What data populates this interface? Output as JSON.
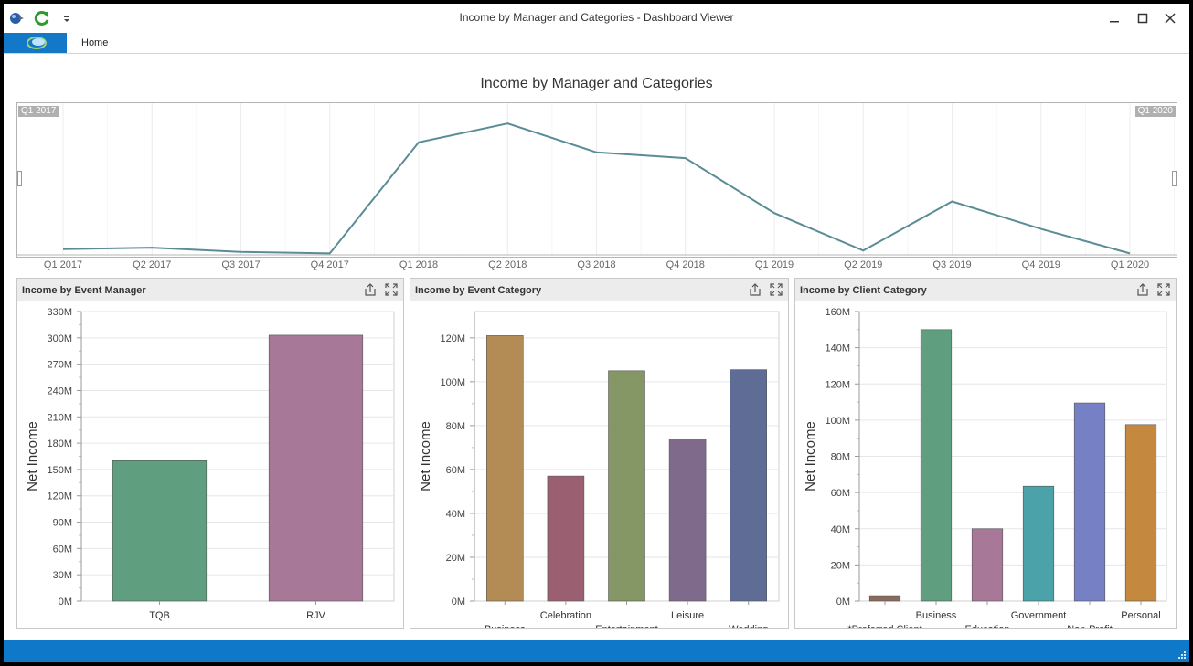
{
  "window": {
    "title": "Income by Manager and Categories - Dashboard Viewer"
  },
  "ribbon": {
    "home_tab": "Home"
  },
  "dashboard": {
    "title": "Income by Manager and Categories",
    "range": {
      "start_label": "Q1 2017",
      "end_label": "Q1 2020",
      "line_color": "#5b8c96",
      "chart_data": {
        "type": "line",
        "x": [
          "Q1 2017",
          "Q2 2017",
          "Q3 2017",
          "Q4 2017",
          "Q1 2018",
          "Q2 2018",
          "Q3 2018",
          "Q4 2018",
          "Q1 2019",
          "Q2 2019",
          "Q3 2019",
          "Q4 2019",
          "Q1 2020"
        ],
        "series": [
          {
            "values": [
              4,
              5,
              2,
              1,
              78,
              91,
              71,
              67,
              29,
              3,
              37,
              18,
              1
            ]
          }
        ],
        "ylim": [
          0,
          100
        ],
        "grid": true
      }
    },
    "panels": [
      {
        "id": "manager",
        "title": "Income by Event Manager",
        "chart_data": {
          "type": "bar",
          "categories": [
            "TQB",
            "RJV"
          ],
          "values": [
            160,
            303
          ],
          "colors": [
            "#5f9e7e",
            "#a87899"
          ],
          "ylabel": "Net Income",
          "ylim": [
            0,
            330
          ],
          "ticks": [
            0,
            30,
            60,
            90,
            120,
            150,
            180,
            210,
            240,
            270,
            300,
            330
          ],
          "tick_suffix": "M",
          "label_rows": [
            0,
            0
          ]
        }
      },
      {
        "id": "event",
        "title": "Income by Event Category",
        "chart_data": {
          "type": "bar",
          "categories": [
            "Business",
            "Celebration",
            "Entertainment",
            "Leisure",
            "Wedding"
          ],
          "values": [
            121,
            57,
            105,
            74,
            105.5
          ],
          "colors": [
            "#b38c55",
            "#9a5f70",
            "#849764",
            "#7f6a8c",
            "#5f6d96"
          ],
          "ylabel": "Net Income",
          "ylim": [
            0,
            132
          ],
          "ticks": [
            0,
            20,
            40,
            60,
            80,
            100,
            120
          ],
          "tick_suffix": "M",
          "label_rows": [
            1,
            0,
            1,
            0,
            1
          ]
        }
      },
      {
        "id": "client",
        "title": "Income by Client Category",
        "chart_data": {
          "type": "bar",
          "categories": [
            "*Preferred Client",
            "Business",
            "Education",
            "Government",
            "Non-Profit",
            "Personal"
          ],
          "values": [
            3,
            150,
            40,
            63.5,
            109.5,
            97.5
          ],
          "colors": [
            "#8a6a5a",
            "#5f9e7e",
            "#a87899",
            "#4ca2a9",
            "#7680c5",
            "#c4893e"
          ],
          "ylabel": "Net Income",
          "ylim": [
            0,
            160
          ],
          "ticks": [
            0,
            20,
            40,
            60,
            80,
            100,
            120,
            140,
            160
          ],
          "tick_suffix": "M",
          "label_rows": [
            1,
            0,
            1,
            0,
            1,
            0
          ]
        }
      }
    ]
  },
  "icons": {
    "quick_access": [
      "app-ball-icon",
      "refresh-icon",
      "customize-arrow-icon"
    ],
    "window": [
      "minimize-icon",
      "maximize-icon",
      "close-icon"
    ],
    "panel": [
      "export-icon",
      "fullscreen-icon"
    ]
  }
}
